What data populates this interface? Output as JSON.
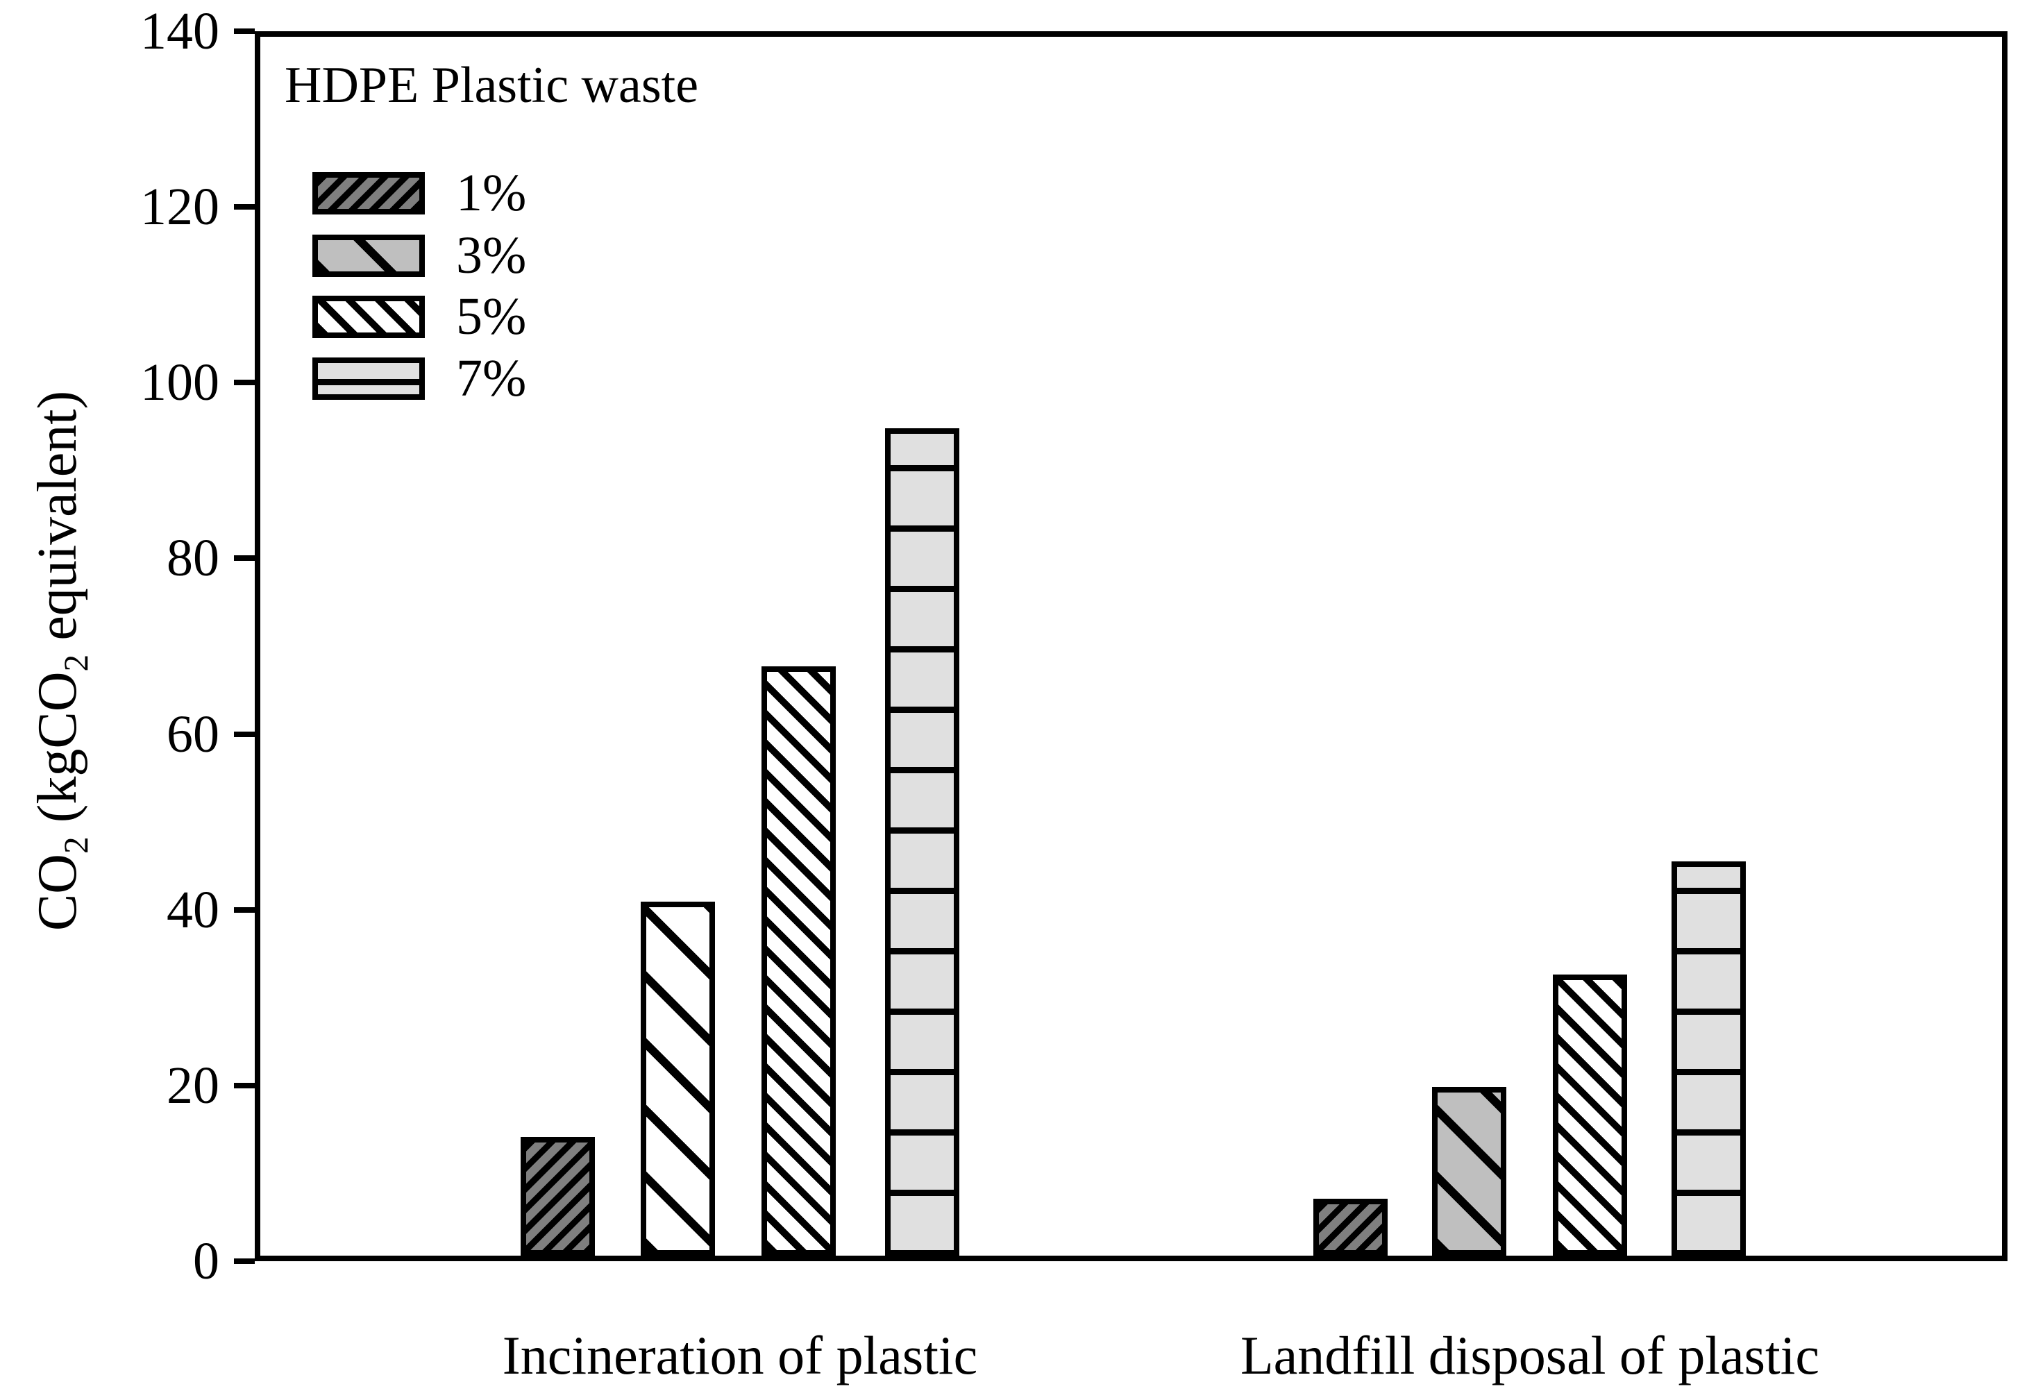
{
  "chart_data": {
    "type": "bar",
    "title": "",
    "ylabel": "CO2 (kgCO2 equivalent)",
    "ylabel_segments": [
      {
        "t": "CO"
      },
      {
        "t": "2",
        "sub": true
      },
      {
        "t": " (kgCO"
      },
      {
        "t": "2",
        "sub": true
      },
      {
        "t": " equivalent)"
      }
    ],
    "xlabel": "",
    "categories": [
      "Incineration of plastic",
      "Landfill disposal of plastic"
    ],
    "series": [
      {
        "name": "1%",
        "pattern": "diagonal-forward-hatch",
        "fill": "#7f7f7f",
        "values": [
          13.6,
          6.5
        ]
      },
      {
        "name": "3%",
        "pattern": "diagonal-back-sparse-hatch",
        "fill": "#bfbfbf",
        "values": [
          40.7,
          19.4
        ],
        "values_fill": [
          "#ffffff",
          "#bfbfbf"
        ]
      },
      {
        "name": "5%",
        "pattern": "diagonal-back-dense-hatch",
        "fill": "#ffffff",
        "values": [
          67.7,
          32.3
        ]
      },
      {
        "name": "7%",
        "pattern": "horizontal-lines-hatch",
        "fill": "#e0e0e0",
        "values": [
          95.0,
          45.3
        ]
      }
    ],
    "ylim": [
      0,
      140
    ],
    "yticks": [
      0,
      20,
      40,
      60,
      80,
      100,
      120,
      140
    ],
    "grid": "off",
    "legend": {
      "title": "HDPE Plastic waste",
      "position": "top-left"
    },
    "colors": {
      "axis": "#000000",
      "hatch_line": "#000000",
      "background": "#ffffff"
    }
  }
}
